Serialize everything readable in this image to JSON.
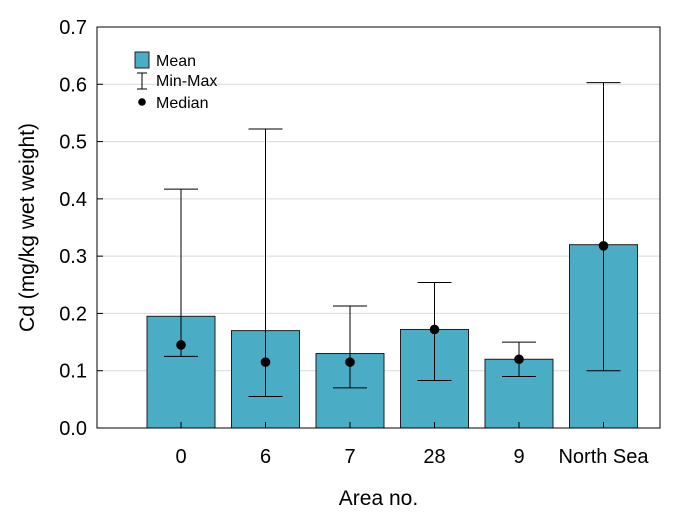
{
  "chart_data": {
    "type": "bar",
    "title": "",
    "xlabel": "Area no.",
    "ylabel": "Cd (mg/kg wet weight)",
    "ylim": [
      0,
      0.7
    ],
    "yticks": [
      0.0,
      0.1,
      0.2,
      0.3,
      0.4,
      0.5,
      0.6,
      0.7
    ],
    "ytick_labels": [
      "0.0",
      "0.1",
      "0.2",
      "0.3",
      "0.4",
      "0.5",
      "0.6",
      "0.7"
    ],
    "grid": "horizontal",
    "legend_position": "top-left",
    "legend": {
      "mean": "Mean",
      "minmax": "Min-Max",
      "median": "Median"
    },
    "categories": [
      "0",
      "6",
      "7",
      "28",
      "9",
      "North Sea"
    ],
    "series": [
      {
        "mean": [
          0.195,
          0.17,
          0.13,
          0.172,
          0.12,
          0.32
        ],
        "min": [
          0.125,
          0.055,
          0.07,
          0.083,
          0.09,
          0.1
        ],
        "max": [
          0.417,
          0.522,
          0.213,
          0.254,
          0.15,
          0.603
        ],
        "median": [
          0.145,
          0.115,
          0.115,
          0.172,
          0.12,
          0.318
        ]
      }
    ],
    "colors": {
      "bar": "#4bacc6",
      "marker": "#000000"
    }
  }
}
